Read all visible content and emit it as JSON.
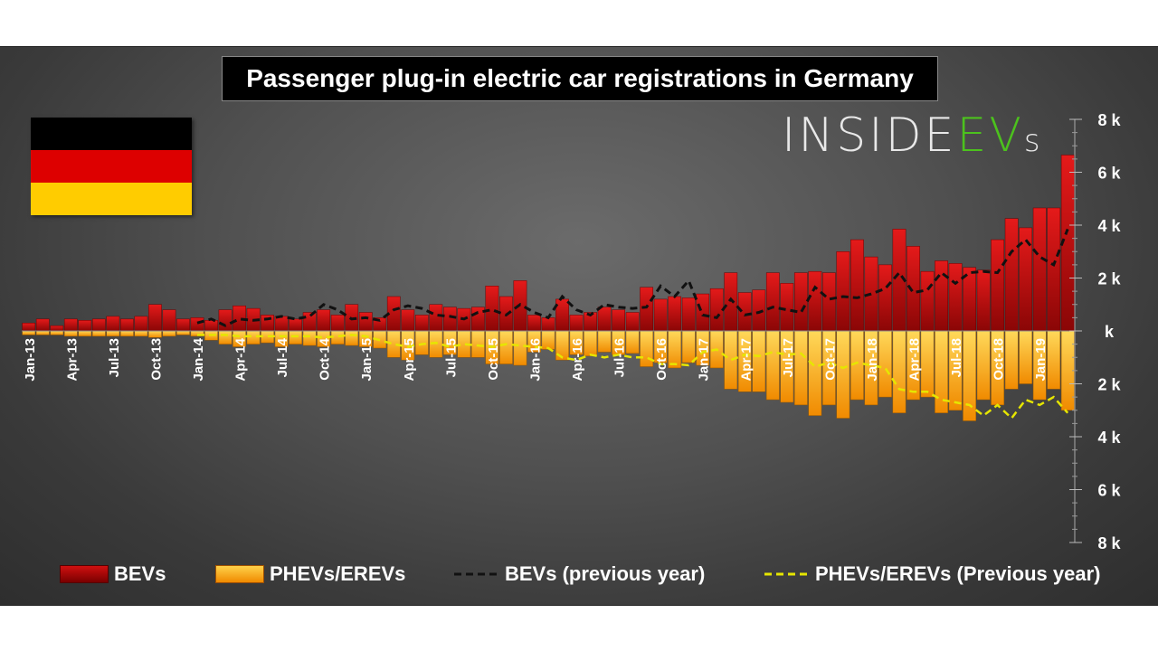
{
  "colors": {
    "bev": "#c01010",
    "phev": "#f5a510",
    "bev_prev_line": "#111111",
    "phev_prev_line": "#e6e600",
    "flag_black": "#000000",
    "flag_red": "#dd0000",
    "flag_gold": "#ffcc00"
  },
  "logo": {
    "part1": "INSIDE",
    "part2": "EV",
    "part3": "s"
  },
  "chart_data": {
    "type": "bar",
    "title": "Passenger plug-in electric car registrations in Germany",
    "xlabel": "",
    "ylabel": "",
    "ylim": [
      -8000,
      8000
    ],
    "yticks": [
      8000,
      6000,
      4000,
      2000,
      0,
      -2000,
      -4000,
      -6000,
      -8000
    ],
    "ytick_labels": [
      "8 k",
      "6 k",
      "4 k",
      "2 k",
      "k",
      "2 k",
      "4 k",
      "6 k",
      "8 k"
    ],
    "categories": [
      "Jan-13",
      "Feb-13",
      "Mar-13",
      "Apr-13",
      "May-13",
      "Jun-13",
      "Jul-13",
      "Aug-13",
      "Sep-13",
      "Oct-13",
      "Nov-13",
      "Dec-13",
      "Jan-14",
      "Feb-14",
      "Mar-14",
      "Apr-14",
      "May-14",
      "Jun-14",
      "Jul-14",
      "Aug-14",
      "Sep-14",
      "Oct-14",
      "Nov-14",
      "Dec-14",
      "Jan-15",
      "Feb-15",
      "Mar-15",
      "Apr-15",
      "May-15",
      "Jun-15",
      "Jul-15",
      "Aug-15",
      "Sep-15",
      "Oct-15",
      "Nov-15",
      "Dec-15",
      "Jan-16",
      "Feb-16",
      "Mar-16",
      "Apr-16",
      "May-16",
      "Jun-16",
      "Jul-16",
      "Aug-16",
      "Sep-16",
      "Oct-16",
      "Nov-16",
      "Dec-16",
      "Jan-17",
      "Feb-17",
      "Mar-17",
      "Apr-17",
      "May-17",
      "Jun-17",
      "Jul-17",
      "Aug-17",
      "Sep-17",
      "Oct-17",
      "Nov-17",
      "Dec-17",
      "Jan-18",
      "Feb-18",
      "Mar-18",
      "Apr-18",
      "May-18",
      "Jun-18",
      "Jul-18",
      "Aug-18",
      "Sep-18",
      "Oct-18",
      "Nov-18",
      "Dec-18",
      "Jan-19",
      "Feb-19",
      "Mar-19"
    ],
    "x_tick_labels": [
      "Jan-13",
      "Apr-13",
      "Jul-13",
      "Oct-13",
      "Jan-14",
      "Apr-14",
      "Jul-14",
      "Oct-14",
      "Jan-15",
      "Apr-15",
      "Jul-15",
      "Oct-15",
      "Jan-16",
      "Apr-16",
      "Jul-16",
      "Oct-16",
      "Jan-17",
      "Apr-17",
      "Jul-17",
      "Oct-17",
      "Jan-18",
      "Apr-18",
      "Jul-18",
      "Oct-18",
      "Jan-19"
    ],
    "series": [
      {
        "name": "BEVs",
        "kind": "bar",
        "direction": "up",
        "values": [
          300,
          450,
          200,
          450,
          400,
          450,
          550,
          450,
          550,
          1000,
          800,
          450,
          500,
          400,
          800,
          950,
          850,
          600,
          550,
          450,
          700,
          800,
          600,
          1000,
          700,
          500,
          1300,
          800,
          600,
          1000,
          900,
          850,
          900,
          1700,
          1300,
          1900,
          600,
          500,
          1200,
          600,
          700,
          900,
          800,
          700,
          1650,
          1200,
          1300,
          1250,
          1400,
          1600,
          2200,
          1450,
          1550,
          2200,
          1800,
          2200,
          2250,
          2200,
          3000,
          3450,
          2800,
          2500,
          3850,
          3200,
          2250,
          2650,
          2550,
          2400,
          2300,
          3450,
          4250,
          3900,
          4650,
          4650,
          6650
        ]
      },
      {
        "name": "PHEVs/EREVs",
        "kind": "bar",
        "direction": "down",
        "values": [
          150,
          150,
          150,
          200,
          200,
          200,
          200,
          200,
          200,
          250,
          200,
          150,
          200,
          350,
          500,
          600,
          500,
          450,
          600,
          500,
          550,
          600,
          500,
          550,
          600,
          650,
          1000,
          1100,
          900,
          1000,
          900,
          1000,
          1000,
          1250,
          1250,
          1300,
          800,
          700,
          1100,
          900,
          950,
          800,
          900,
          850,
          1350,
          1200,
          1400,
          1200,
          1300,
          1400,
          2200,
          2300,
          2300,
          2600,
          2700,
          2800,
          3200,
          2800,
          3300,
          2600,
          2800,
          2500,
          3100,
          2600,
          2500,
          3100,
          3000,
          3400,
          2600,
          2800,
          2200,
          2000,
          2600,
          2200,
          3000
        ]
      },
      {
        "name": "BEVs (previous year)",
        "kind": "line",
        "style": "dashed",
        "values": [
          null,
          null,
          null,
          null,
          null,
          null,
          null,
          null,
          null,
          null,
          null,
          null,
          300,
          450,
          200,
          450,
          400,
          450,
          550,
          450,
          550,
          1000,
          800,
          450,
          500,
          400,
          800,
          950,
          850,
          600,
          550,
          450,
          700,
          800,
          600,
          1000,
          700,
          500,
          1300,
          800,
          600,
          1000,
          900,
          850,
          900,
          1700,
          1300,
          1900,
          600,
          500,
          1200,
          600,
          700,
          900,
          800,
          700,
          1650,
          1200,
          1300,
          1250,
          1400,
          1600,
          2200,
          1450,
          1550,
          2200,
          1800,
          2200,
          2250,
          2200,
          3000,
          3450,
          2800,
          2500,
          3850
        ]
      },
      {
        "name": "PHEVs/EREVs (Previous year)",
        "kind": "line",
        "style": "dashed",
        "direction": "down",
        "values": [
          null,
          null,
          null,
          null,
          null,
          null,
          null,
          null,
          null,
          null,
          null,
          null,
          150,
          150,
          150,
          200,
          200,
          200,
          200,
          200,
          200,
          250,
          200,
          150,
          200,
          350,
          500,
          600,
          500,
          450,
          600,
          500,
          550,
          600,
          500,
          550,
          600,
          650,
          1000,
          1100,
          900,
          1000,
          900,
          1000,
          1000,
          1250,
          1250,
          1300,
          800,
          700,
          1100,
          900,
          950,
          800,
          900,
          850,
          1350,
          1200,
          1400,
          1200,
          1300,
          1400,
          2200,
          2300,
          2300,
          2600,
          2700,
          2800,
          3200,
          2800,
          3300,
          2600,
          2800,
          2500,
          3100
        ]
      }
    ]
  },
  "legend": {
    "bev": "BEVs",
    "phev": "PHEVs/EREVs",
    "bev_prev": "BEVs (previous year)",
    "phev_prev": "PHEVs/EREVs (Previous year)"
  }
}
